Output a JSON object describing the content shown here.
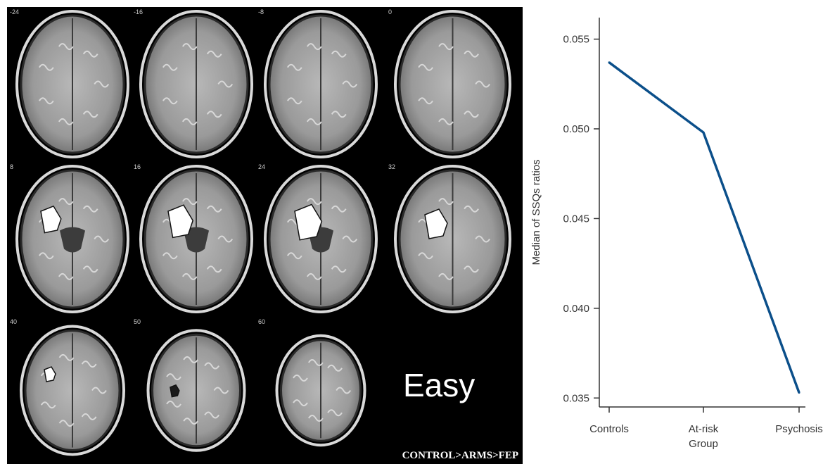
{
  "figure": {
    "slices": [
      "-24",
      "-16",
      "-8",
      "0",
      "8",
      "16",
      "24",
      "32",
      "40",
      "50",
      "60"
    ],
    "condition": "Easy",
    "contrast": "CONTROL>ARMS>FEP",
    "colors": {
      "panel_bg": "#000000",
      "line": "#0b4f8a",
      "axis": "#333333"
    }
  },
  "chart_data": {
    "type": "line",
    "categories": [
      "Controls",
      "At-risk",
      "Psychosis"
    ],
    "values": [
      0.0537,
      0.0498,
      0.0353
    ],
    "xlabel": "Group",
    "ylabel": "Median of SSQs ratios",
    "ylim": [
      0.0345,
      0.0562
    ],
    "yticks": [
      "0.055",
      "0.050",
      "0.045",
      "0.040",
      "0.035"
    ],
    "ytick_values": [
      0.055,
      0.05,
      0.045,
      0.04,
      0.035
    ],
    "grid": false,
    "legend": "none"
  }
}
